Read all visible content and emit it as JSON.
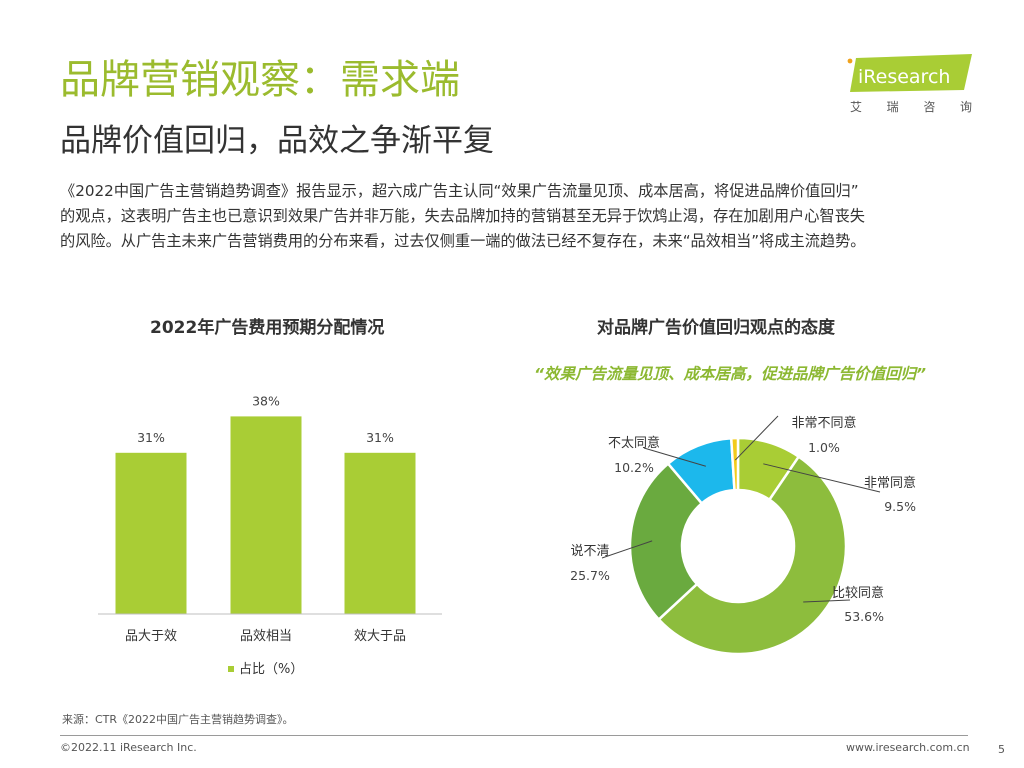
{
  "header": {
    "title": "品牌营销观察：需求端",
    "subtitle": "品牌价值回归，品效之争渐平复"
  },
  "logo": {
    "brand": "iResearch",
    "chinese": [
      "艾",
      "瑞",
      "咨",
      "询"
    ]
  },
  "body": {
    "lines": [
      "《2022中国广告主营销趋势调查》报告显示，超六成广告主认同“效果广告流量见顶、成本居高，将促进品牌价值回归”",
      "的观点，这表明广告主也已意识到效果广告并非万能，失去品牌加持的营销甚至无异于饮鸩止渴，存在加剧用户心智丧失",
      "的风险。从广告主未来广告营销费用的分布来看，过去仅侧重一端的做法已经不复存在，未来“品效相当”将成主流趋势。"
    ]
  },
  "colors": {
    "title_green": "#9bbb2e",
    "bar_green": "#a9cd35",
    "pie_light_green": "#a9cd35",
    "pie_mid_green": "#8dbd3d",
    "pie_dark_green": "#6aaa3f",
    "pie_blue": "#1cb8ec",
    "pie_yellow": "#f2cb1d"
  },
  "chart_data": [
    {
      "type": "bar",
      "title": "2022年广告费用预期分配情况",
      "categories": [
        "品大于效",
        "品效相当",
        "效大于品"
      ],
      "values": [
        31,
        38,
        31
      ],
      "value_labels": [
        "31%",
        "38%",
        "31%"
      ],
      "legend": "占比（%）",
      "ylim": [
        0,
        45
      ]
    },
    {
      "type": "pie",
      "title": "对品牌广告价值回归观点的态度",
      "quote": "“效果广告流量见顶、成本居高，促进品牌广告价值回归”",
      "slices": [
        {
          "label": "非常同意",
          "value": 9.5,
          "value_label": "9.5%",
          "color": "#a9cd35"
        },
        {
          "label": "比较同意",
          "value": 53.6,
          "value_label": "53.6%",
          "color": "#8dbd3d"
        },
        {
          "label": "说不清",
          "value": 25.7,
          "value_label": "25.7%",
          "color": "#6aaa3f"
        },
        {
          "label": "不太同意",
          "value": 10.2,
          "value_label": "10.2%",
          "color": "#1cb8ec"
        },
        {
          "label": "非常不同意",
          "value": 1.0,
          "value_label": "1.0%",
          "color": "#f2cb1d"
        }
      ]
    }
  ],
  "footer": {
    "source": "来源：CTR《2022中国广告主营销趋势调查》。",
    "copyright": "©2022.11 iResearch Inc.",
    "website": "www.iresearch.com.cn",
    "page": "5"
  }
}
